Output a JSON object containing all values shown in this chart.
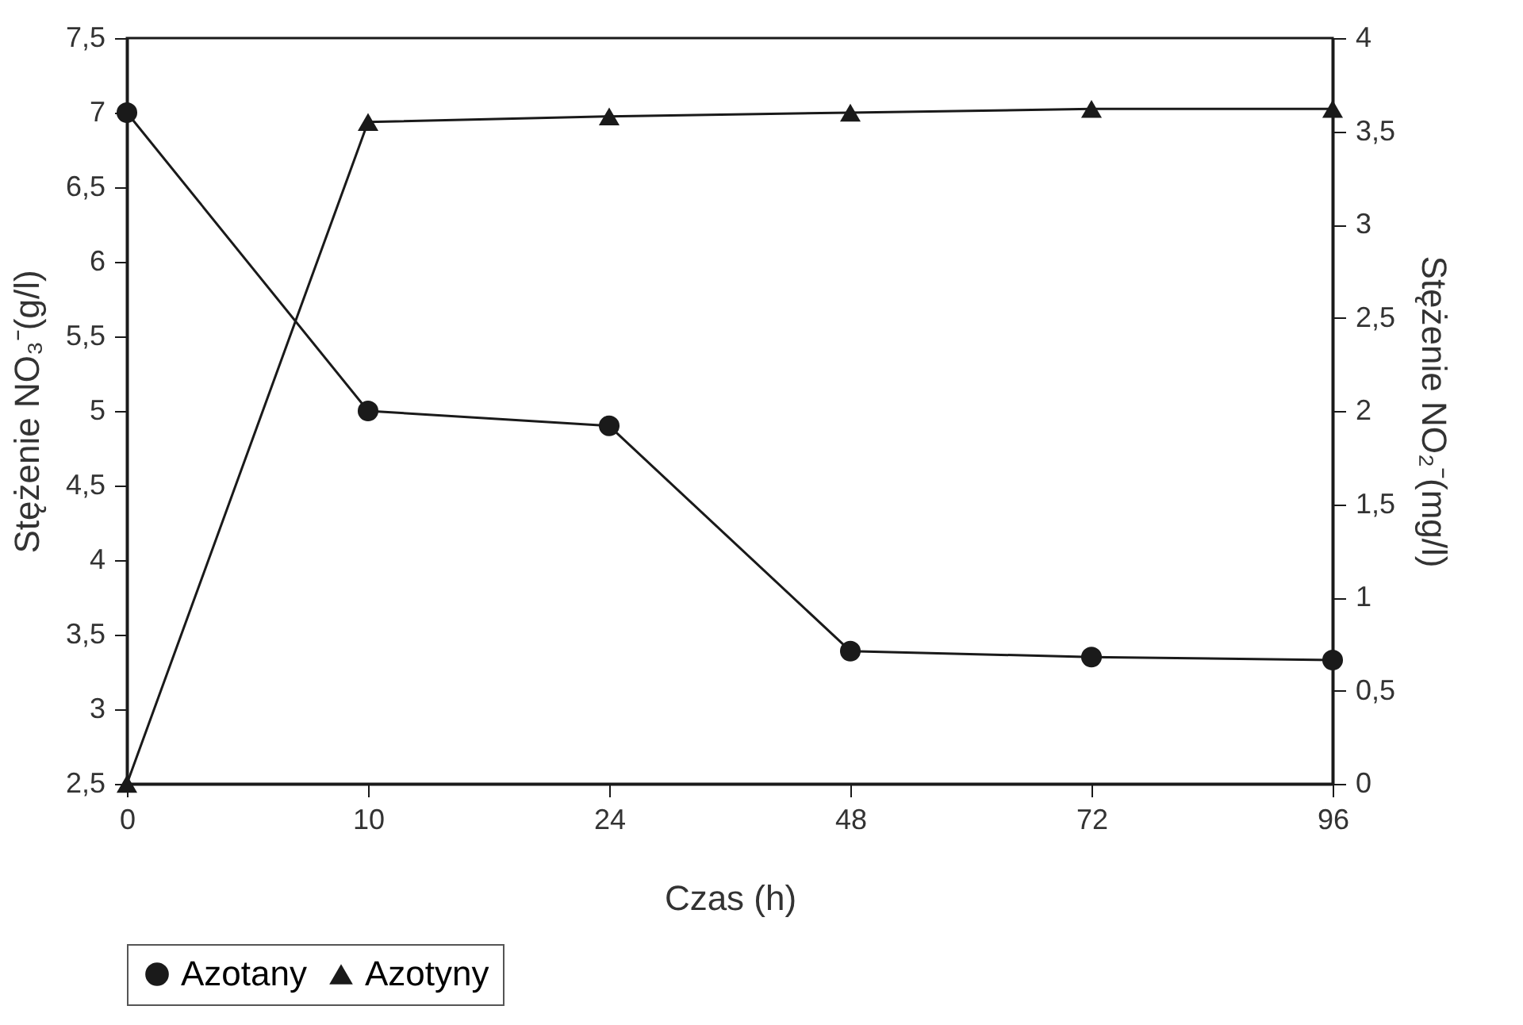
{
  "chart_data": {
    "type": "line",
    "xlabel": "Czas (h)",
    "ylabel": "Stężenie NO₃⁻(g/l)",
    "y2label": "Stężenie NO₂⁻(mg/l)",
    "categories": [
      "0",
      "10",
      "24",
      "48",
      "72",
      "96"
    ],
    "series": [
      {
        "name": "Azotany",
        "color": "#1a1a1a",
        "marker": "circle",
        "values": [
          7.0,
          5.0,
          4.9,
          3.39,
          3.35,
          3.33
        ]
      },
      {
        "name": "Azotyny",
        "color": "#1a1a1a",
        "marker": "triangle",
        "axis": "y2",
        "values": [
          0,
          3.55,
          3.58,
          3.6,
          3.62,
          3.62
        ]
      }
    ],
    "ylim": [
      2.5,
      7.5
    ],
    "yticks": [
      {
        "value": 2.5,
        "label": "2,5"
      },
      3,
      {
        "value": 3.5,
        "label": "3,5"
      },
      4,
      {
        "value": 4.5,
        "label": "4,5"
      },
      5,
      {
        "value": 5.5,
        "label": "5,5"
      },
      6,
      {
        "value": 6.5,
        "label": "6,5"
      },
      7,
      {
        "value": 7.5,
        "label": "7,5"
      }
    ],
    "y2lim": [
      0,
      4
    ],
    "y2ticks": [
      0,
      {
        "value": 0.5,
        "label": "0,5"
      },
      1,
      {
        "value": 1.5,
        "label": "1,5"
      },
      2,
      {
        "value": 2.5,
        "label": "2,5"
      },
      3,
      {
        "value": 3.5,
        "label": "3,5"
      },
      4
    ],
    "grid": false,
    "legend": "bottom",
    "line_style": "solid"
  }
}
